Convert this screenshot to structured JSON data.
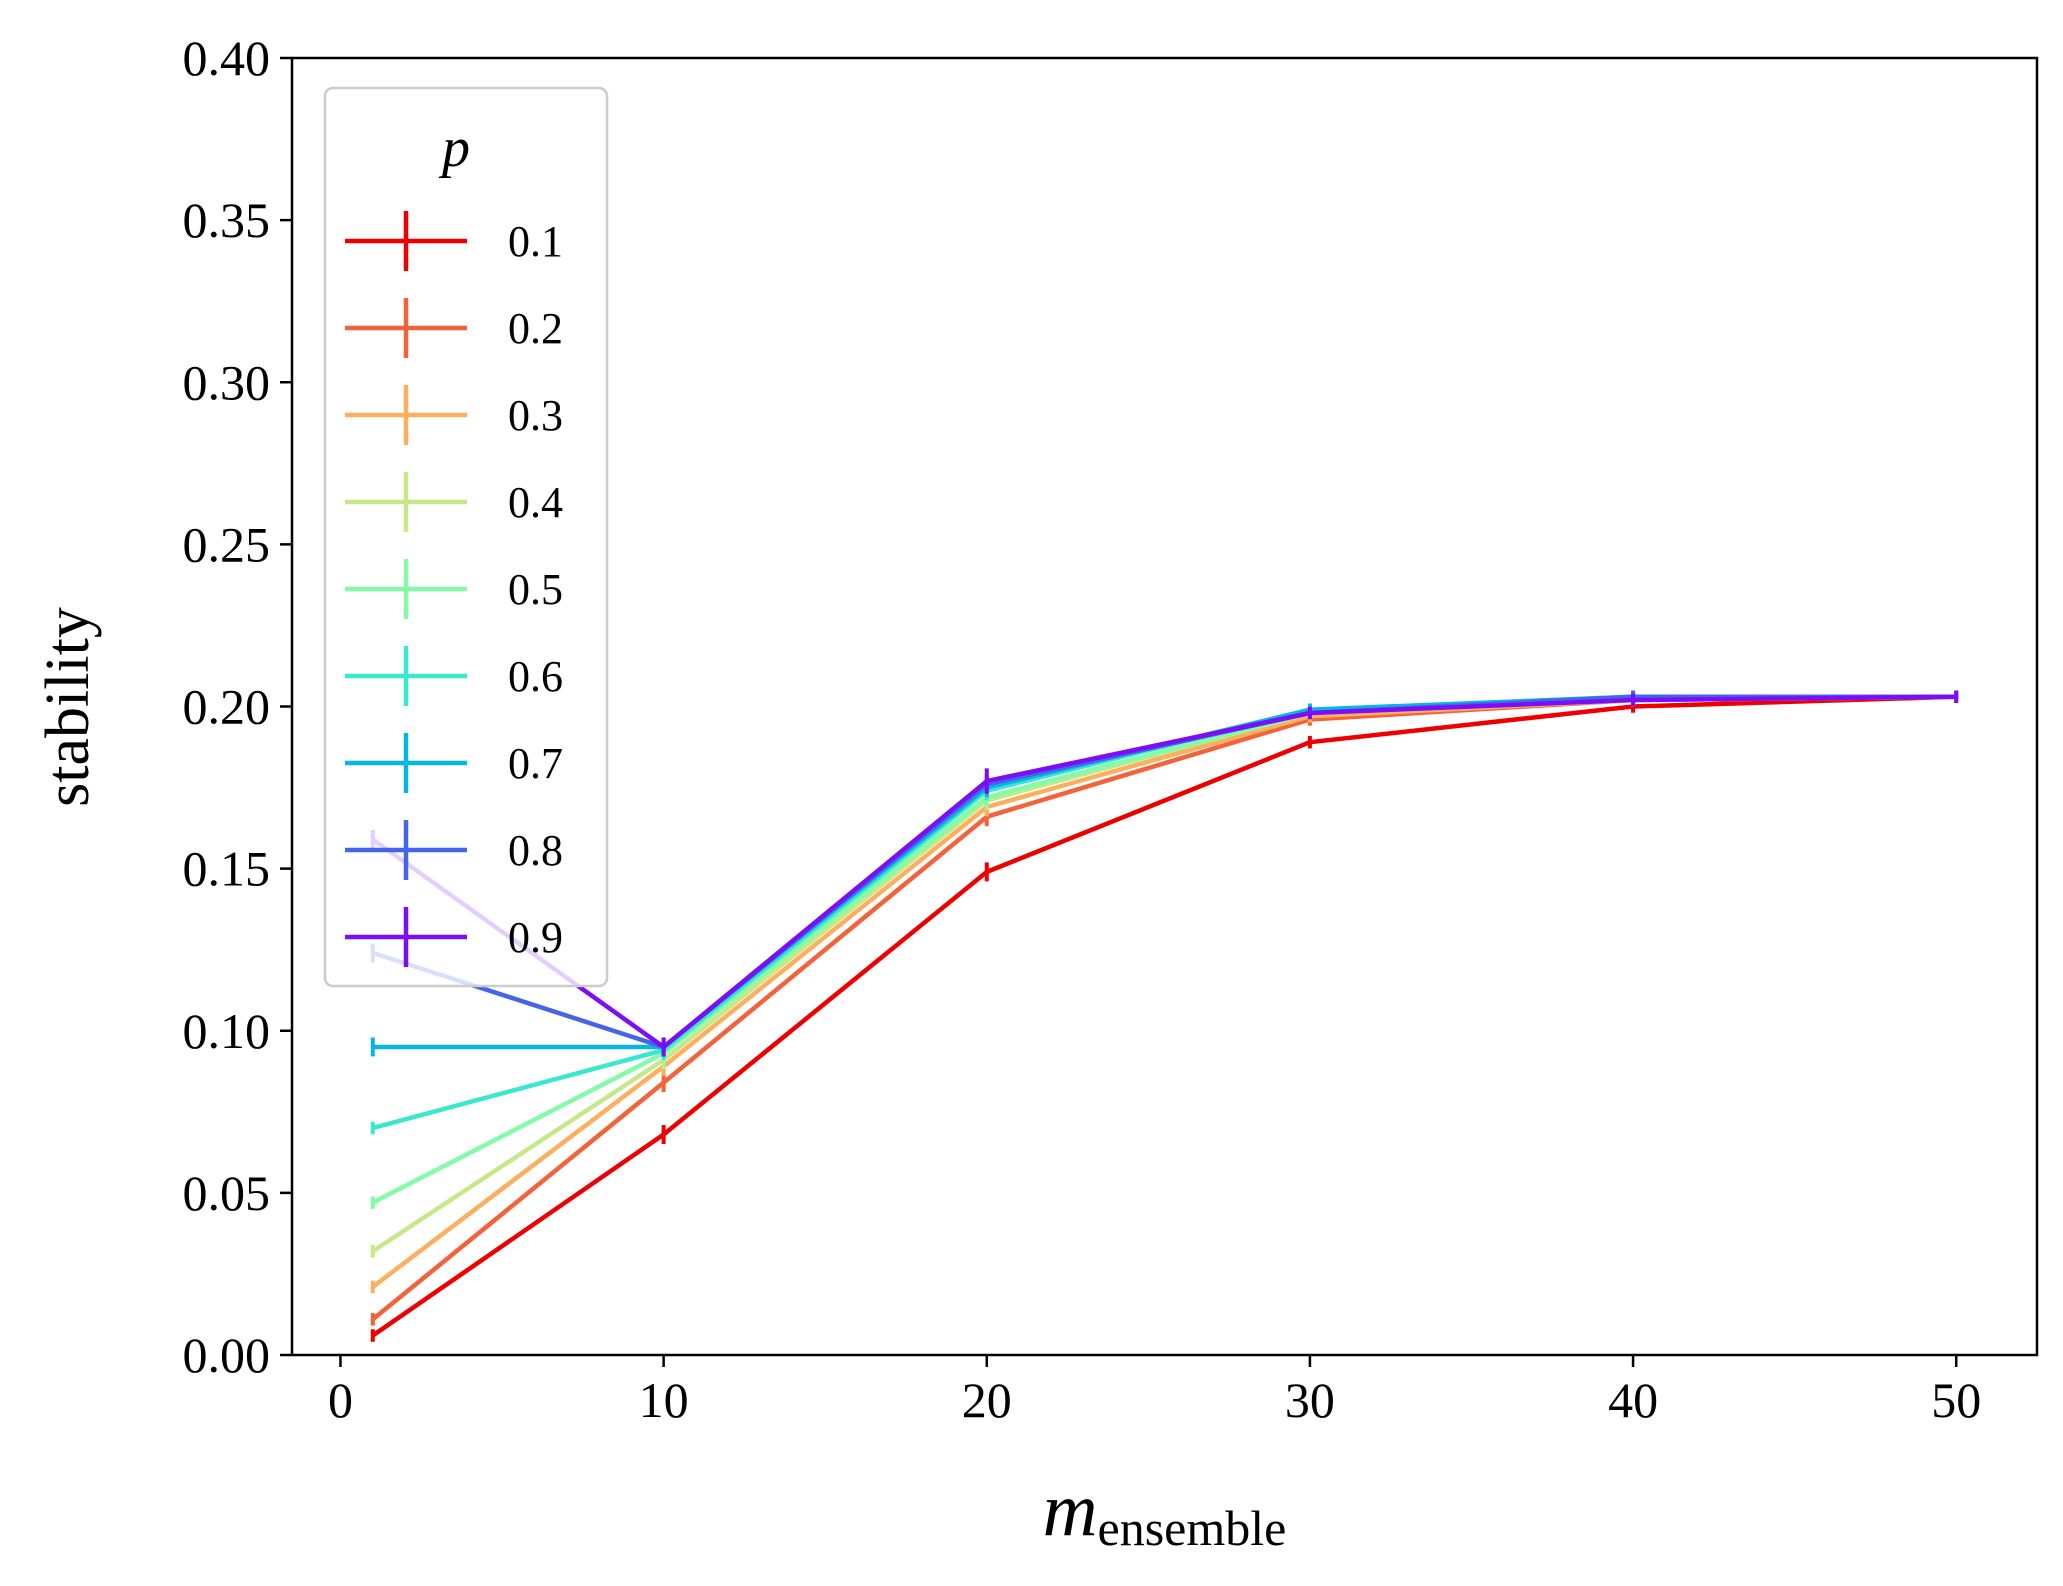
{
  "chart_data": {
    "type": "line",
    "title": "",
    "xlabel": {
      "main": "m",
      "subscript": "ensemble"
    },
    "ylabel": "stability",
    "xlim": [
      -1.5,
      52.5
    ],
    "ylim": [
      0.0,
      0.4
    ],
    "xticks": [
      0,
      10,
      20,
      30,
      40,
      50
    ],
    "xtick_labels": [
      "0",
      "10",
      "20",
      "30",
      "40",
      "50"
    ],
    "yticks": [
      0.0,
      0.05,
      0.1,
      0.15,
      0.2,
      0.25,
      0.3,
      0.35,
      0.4
    ],
    "ytick_labels": [
      "0.00",
      "0.05",
      "0.10",
      "0.15",
      "0.20",
      "0.25",
      "0.30",
      "0.35",
      "0.40"
    ],
    "grid": false,
    "legend": {
      "title": "p",
      "placement": "upper-left"
    },
    "x": [
      1,
      10,
      20,
      30,
      40,
      50
    ],
    "series": [
      {
        "name": "0.1",
        "color": "#ee0000",
        "values": [
          0.006,
          0.068,
          0.149,
          0.189,
          0.2,
          0.203
        ],
        "errors": [
          0.001,
          0.002,
          0.002,
          0.001,
          0.001,
          0.001
        ]
      },
      {
        "name": "0.2",
        "color": "#f4623a",
        "values": [
          0.011,
          0.084,
          0.166,
          0.196,
          0.202,
          0.203
        ],
        "errors": [
          0.001,
          0.002,
          0.002,
          0.001,
          0.001,
          0.001
        ]
      },
      {
        "name": "0.3",
        "color": "#fcb05f",
        "values": [
          0.021,
          0.089,
          0.169,
          0.197,
          0.202,
          0.203
        ],
        "errors": [
          0.001,
          0.002,
          0.002,
          0.001,
          0.001,
          0.001
        ]
      },
      {
        "name": "0.4",
        "color": "#c5e98a",
        "values": [
          0.032,
          0.091,
          0.171,
          0.198,
          0.202,
          0.203
        ],
        "errors": [
          0.001,
          0.002,
          0.002,
          0.001,
          0.001,
          0.001
        ]
      },
      {
        "name": "0.5",
        "color": "#83fba8",
        "values": [
          0.047,
          0.093,
          0.172,
          0.198,
          0.203,
          0.203
        ],
        "errors": [
          0.001,
          0.002,
          0.002,
          0.001,
          0.001,
          0.001
        ]
      },
      {
        "name": "0.6",
        "color": "#3ae8d0",
        "values": [
          0.07,
          0.094,
          0.174,
          0.199,
          0.203,
          0.203
        ],
        "errors": [
          0.001,
          0.002,
          0.002,
          0.001,
          0.001,
          0.001
        ]
      },
      {
        "name": "0.7",
        "color": "#08b5e5",
        "values": [
          0.095,
          0.095,
          0.175,
          0.199,
          0.203,
          0.203
        ],
        "errors": [
          0.002,
          0.002,
          0.002,
          0.001,
          0.001,
          0.001
        ]
      },
      {
        "name": "0.8",
        "color": "#4465ea",
        "values": [
          0.124,
          0.095,
          0.176,
          0.198,
          0.203,
          0.203
        ],
        "errors": [
          0.002,
          0.002,
          0.002,
          0.001,
          0.001,
          0.001
        ]
      },
      {
        "name": "0.9",
        "color": "#7c0ef5",
        "values": [
          0.159,
          0.095,
          0.177,
          0.198,
          0.202,
          0.203
        ],
        "errors": [
          0.002,
          0.002,
          0.003,
          0.001,
          0.001,
          0.001
        ]
      }
    ]
  }
}
